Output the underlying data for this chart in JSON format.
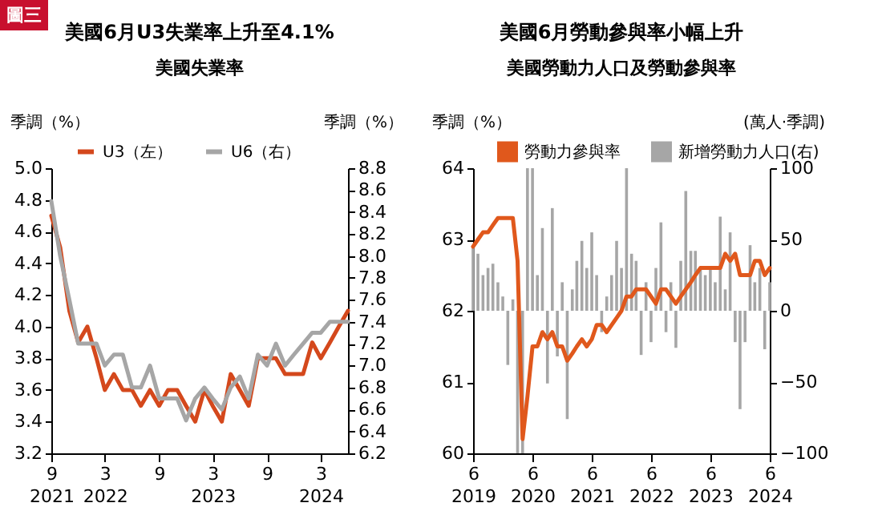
{
  "chart_data": [
    {
      "type": "line",
      "title": "美國6月U3失業率上升至4.1%",
      "subtitle": "美國失業率",
      "ylabel": "季調（%）",
      "y2label": "季調（%）",
      "annotations": [
        "圖三"
      ],
      "legend": "top",
      "grid": false,
      "x": [
        "2021-09",
        "2021-10",
        "2021-11",
        "2021-12",
        "2022-01",
        "2022-02",
        "2022-03",
        "2022-04",
        "2022-05",
        "2022-06",
        "2022-07",
        "2022-08",
        "2022-09",
        "2022-10",
        "2022-11",
        "2022-12",
        "2023-01",
        "2023-02",
        "2023-03",
        "2023-04",
        "2023-05",
        "2023-06",
        "2023-07",
        "2023-08",
        "2023-09",
        "2023-10",
        "2023-11",
        "2023-12",
        "2024-01",
        "2024-02",
        "2024-03",
        "2024-04",
        "2024-05",
        "2024-06"
      ],
      "xlim": [
        "2021-09",
        "2024-06"
      ],
      "xticks": [
        {
          "value": "2021-09",
          "label": "9\n2021"
        },
        {
          "value": "2022-03",
          "label": "3\n2022"
        },
        {
          "value": "2022-09",
          "label": "9"
        },
        {
          "value": "2023-03",
          "label": "3\n2023"
        },
        {
          "value": "2023-09",
          "label": "9"
        },
        {
          "value": "2024-03",
          "label": "3\n2024"
        }
      ],
      "ylim": [
        3.2,
        5.0
      ],
      "yticks": [
        3.2,
        3.4,
        3.6,
        3.8,
        {
          "value": 4,
          "label": "4.0"
        },
        4.2,
        4.4,
        4.6,
        4.8,
        {
          "value": 5,
          "label": "5.0"
        }
      ],
      "y2lim": [
        6.2,
        8.8
      ],
      "y2ticks": [
        6.2,
        6.4,
        6.6,
        6.8,
        {
          "value": 7,
          "label": "7.0"
        },
        7.2,
        7.4,
        7.6,
        7.8,
        {
          "value": 8,
          "label": "8.0"
        },
        8.2,
        8.4,
        8.6,
        8.8
      ],
      "series": [
        {
          "name": "U3（左）",
          "color": "#d4481c",
          "values": [
            4.7,
            4.5,
            4.1,
            3.9,
            4.0,
            3.8,
            3.6,
            3.7,
            3.6,
            3.6,
            3.5,
            3.6,
            3.5,
            3.6,
            3.6,
            3.5,
            3.4,
            3.6,
            3.5,
            3.4,
            3.7,
            3.6,
            3.5,
            3.8,
            3.8,
            3.8,
            3.7,
            3.7,
            3.7,
            3.9,
            3.8,
            3.9,
            4.0,
            4.1
          ]
        },
        {
          "name": "U6（右）",
          "color": "#a6a6a6",
          "axis": "y2",
          "values": [
            8.5,
            8.0,
            7.6,
            7.2,
            7.2,
            7.2,
            7.0,
            7.1,
            7.1,
            6.8,
            6.8,
            7.0,
            6.7,
            6.7,
            6.7,
            6.5,
            6.7,
            6.8,
            6.7,
            6.6,
            6.8,
            6.9,
            6.7,
            7.1,
            7.0,
            7.2,
            7.0,
            7.1,
            7.2,
            7.3,
            7.3,
            7.4,
            7.4,
            7.4
          ]
        }
      ]
    },
    {
      "type": "line",
      "title": "美國6月勞動參與率小幅上升",
      "subtitle": "美國勞動力人口及勞動參與率",
      "ylabel": "季調（%）",
      "y2label": "(萬人·季調)",
      "legend": "top",
      "grid": false,
      "x": [
        "2019-06",
        "2019-07",
        "2019-08",
        "2019-09",
        "2019-10",
        "2019-11",
        "2019-12",
        "2020-01",
        "2020-02",
        "2020-03",
        "2020-04",
        "2020-05",
        "2020-06",
        "2020-07",
        "2020-08",
        "2020-09",
        "2020-10",
        "2020-11",
        "2020-12",
        "2021-01",
        "2021-02",
        "2021-03",
        "2021-04",
        "2021-05",
        "2021-06",
        "2021-07",
        "2021-08",
        "2021-09",
        "2021-10",
        "2021-11",
        "2021-12",
        "2022-01",
        "2022-02",
        "2022-03",
        "2022-04",
        "2022-05",
        "2022-06",
        "2022-07",
        "2022-08",
        "2022-09",
        "2022-10",
        "2022-11",
        "2022-12",
        "2023-01",
        "2023-02",
        "2023-03",
        "2023-04",
        "2023-05",
        "2023-06",
        "2023-07",
        "2023-08",
        "2023-09",
        "2023-10",
        "2023-11",
        "2023-12",
        "2024-01",
        "2024-02",
        "2024-03",
        "2024-04",
        "2024-05",
        "2024-06"
      ],
      "xlim": [
        "2019-06",
        "2024-06"
      ],
      "xticks": [
        {
          "value": "2019-06",
          "label": "6\n2019"
        },
        {
          "value": "2020-06",
          "label": "6\n2020"
        },
        {
          "value": "2021-06",
          "label": "6\n2021"
        },
        {
          "value": "2022-06",
          "label": "6\n2022"
        },
        {
          "value": "2023-06",
          "label": "6\n2023"
        },
        {
          "value": "2024-06",
          "label": "6\n2024"
        }
      ],
      "ylim": [
        60,
        64
      ],
      "yticks": [
        60,
        61,
        62,
        63,
        64
      ],
      "y2lim": [
        -100,
        100
      ],
      "y2ticks": [
        -100,
        -50,
        0,
        50,
        100
      ],
      "series": [
        {
          "name": "勞動力參與率",
          "type": "line",
          "color": "#e0581c",
          "values": [
            62.9,
            63.0,
            63.1,
            63.1,
            63.2,
            63.3,
            63.3,
            63.3,
            63.3,
            62.7,
            60.2,
            60.8,
            61.5,
            61.5,
            61.7,
            61.6,
            61.7,
            61.5,
            61.5,
            61.3,
            61.4,
            61.5,
            61.6,
            61.5,
            61.6,
            61.8,
            61.8,
            61.7,
            61.8,
            61.9,
            62.0,
            62.2,
            62.2,
            62.3,
            62.3,
            62.3,
            62.2,
            62.1,
            62.3,
            62.3,
            62.2,
            62.1,
            62.2,
            62.3,
            62.4,
            62.5,
            62.6,
            62.6,
            62.6,
            62.6,
            62.6,
            62.8,
            62.7,
            62.8,
            62.5,
            62.5,
            62.5,
            62.7,
            62.7,
            62.5,
            62.6
          ]
        },
        {
          "name": "新增勞動力人口(右)",
          "type": "bar",
          "axis": "y2",
          "color": "#a6a6a6",
          "values": [
            45,
            40,
            25,
            30,
            33,
            20,
            10,
            -38,
            8,
            -100,
            -100,
            100,
            100,
            25,
            58,
            -51,
            72,
            -32,
            20,
            -76,
            15,
            35,
            49,
            30,
            55,
            25,
            -15,
            10,
            25,
            49,
            30,
            100,
            40,
            35,
            -31,
            20,
            -22,
            30,
            62,
            -15,
            20,
            -26,
            35,
            84,
            42,
            42,
            30,
            25,
            30,
            20,
            66,
            15,
            55,
            -22,
            -69,
            -22,
            46,
            20,
            30,
            -27,
            20
          ]
        }
      ]
    }
  ]
}
